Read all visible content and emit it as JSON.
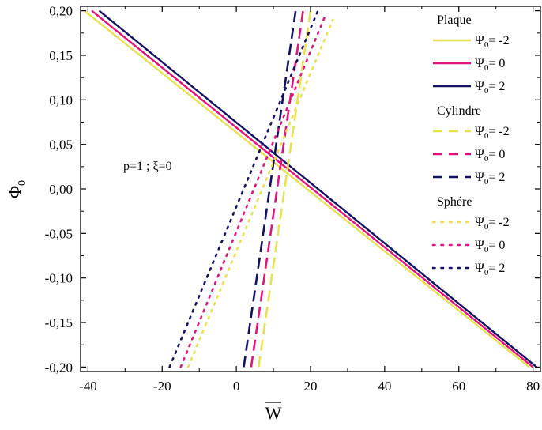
{
  "chart_data": {
    "type": "line",
    "title": "",
    "xlabel": "W",
    "xlabel_overline": true,
    "ylabel": "Φ",
    "ylabel_sub": "0",
    "xlim": [
      -42,
      82
    ],
    "ylim": [
      -0.205,
      0.205
    ],
    "xticks": [
      -40,
      -20,
      0,
      20,
      40,
      60,
      80
    ],
    "xtick_labels": [
      "-40",
      "-20",
      "0",
      "20",
      "40",
      "60",
      "80"
    ],
    "yticks": [
      -0.2,
      -0.15,
      -0.1,
      -0.05,
      0.0,
      0.05,
      0.1,
      0.15,
      0.2
    ],
    "ytick_labels": [
      "-0,20",
      "-0,15",
      "-0,10",
      "-0,05",
      "0,00",
      "0,05",
      "0,10",
      "0,15",
      "0,20"
    ],
    "annotation": "p=1 ; ξ=0",
    "colors": {
      "psi_m2": "#e6e055",
      "psi_0": "#e0157a",
      "psi_2": "#12125e"
    },
    "groups": [
      {
        "name": "Plaque",
        "style": "solid",
        "series": [
          {
            "name": "Ψ0= -2",
            "psi": "-2",
            "color": "#e6e055",
            "x": [
              -41,
              79
            ],
            "y": [
              0.2,
              -0.2
            ]
          },
          {
            "name": "Ψ0= 0",
            "psi": "0",
            "color": "#e0157a",
            "x": [
              -39,
              80
            ],
            "y": [
              0.2,
              -0.2
            ]
          },
          {
            "name": "Ψ0= 2",
            "psi": "2",
            "color": "#12125e",
            "x": [
              -37,
              81
            ],
            "y": [
              0.2,
              -0.2
            ]
          }
        ]
      },
      {
        "name": "Cylindre",
        "style": "dashed",
        "series": [
          {
            "name": "Ψ0= -2",
            "psi": "-2",
            "color": "#e6e055",
            "x": [
              6,
              20
            ],
            "y": [
              -0.2,
              0.2
            ]
          },
          {
            "name": "Ψ0= 0",
            "psi": "0",
            "color": "#e0157a",
            "x": [
              4,
              18
            ],
            "y": [
              -0.2,
              0.2
            ]
          },
          {
            "name": "Ψ0= 2",
            "psi": "2",
            "color": "#12125e",
            "x": [
              2,
              16
            ],
            "y": [
              -0.2,
              0.2
            ]
          }
        ]
      },
      {
        "name": "Sphére",
        "style": "dotted",
        "series": [
          {
            "name": "Ψ0= -2",
            "psi": "-2",
            "color": "#e6e055",
            "x": [
              -13,
              26
            ],
            "y": [
              -0.2,
              0.19
            ]
          },
          {
            "name": "Ψ0= 0",
            "psi": "0",
            "color": "#e0157a",
            "x": [
              -15,
              24
            ],
            "y": [
              -0.2,
              0.195
            ]
          },
          {
            "name": "Ψ0= 2",
            "psi": "2",
            "color": "#12125e",
            "x": [
              -18,
              22
            ],
            "y": [
              -0.2,
              0.2
            ]
          }
        ]
      }
    ]
  }
}
